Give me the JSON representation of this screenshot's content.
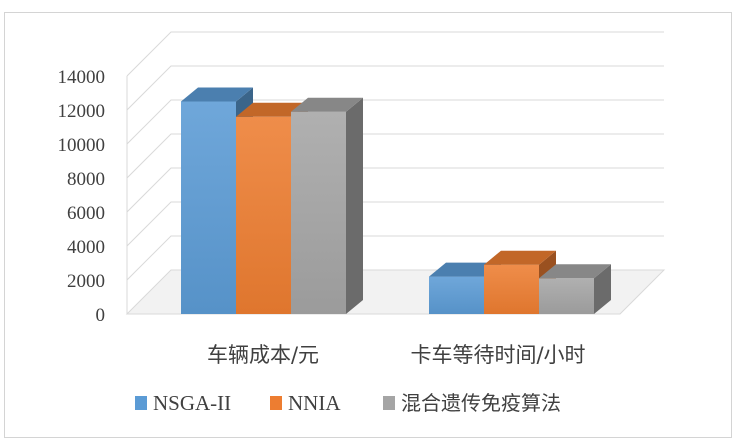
{
  "chart_data": {
    "type": "bar",
    "categories": [
      "车辆成本/元",
      "卡车等待时间/小时"
    ],
    "series": [
      {
        "name": "NSGA-II",
        "values": [
          12500,
          2200
        ],
        "color": "#5b9bd5"
      },
      {
        "name": "NNIA",
        "values": [
          11600,
          2900
        ],
        "color": "#ed7d31"
      },
      {
        "name": "混合遗传免疫算法",
        "values": [
          11900,
          2100
        ],
        "color": "#a5a5a5"
      }
    ],
    "yticks": [
      "0",
      "2000",
      "4000",
      "6000",
      "8000",
      "10000",
      "12000",
      "14000"
    ],
    "ylim": [
      0,
      14000
    ],
    "grid": true,
    "legend_position": "bottom",
    "title": "",
    "xlabel": "",
    "ylabel": ""
  }
}
